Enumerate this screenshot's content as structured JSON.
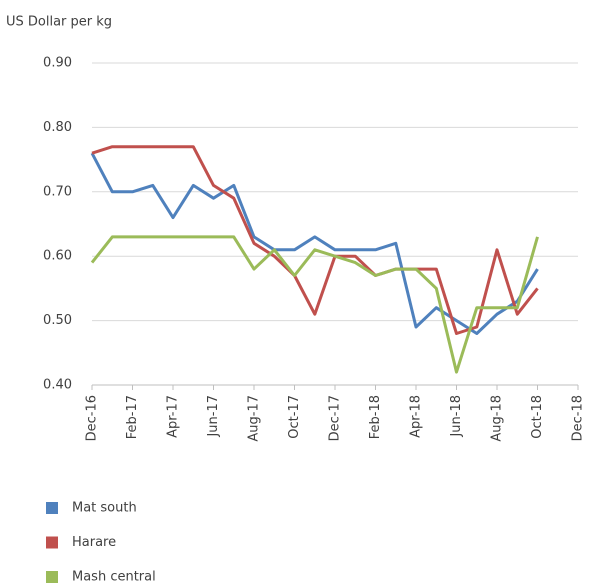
{
  "chart_data": {
    "type": "line",
    "y_label": "US Dollar per kg",
    "categories": [
      "Dec-16",
      null,
      "Feb-17",
      null,
      "Apr-17",
      null,
      "Jun-17",
      null,
      "Aug-17",
      null,
      "Oct-17",
      null,
      "Dec-17",
      null,
      "Feb-18",
      null,
      "Apr-18",
      null,
      "Jun-18",
      null,
      "Aug-18",
      null,
      "Oct-18",
      null,
      "Dec-18"
    ],
    "series": [
      {
        "name": "Mat south",
        "color": "#4f81bd",
        "values": [
          0.76,
          0.7,
          0.7,
          0.71,
          0.66,
          0.71,
          0.69,
          0.71,
          0.63,
          0.61,
          0.61,
          0.63,
          0.61,
          0.61,
          0.61,
          0.62,
          0.49,
          0.52,
          0.5,
          0.48,
          0.51,
          0.53,
          0.58,
          null,
          null
        ]
      },
      {
        "name": "Harare",
        "color": "#c0504d",
        "values": [
          0.76,
          0.77,
          0.77,
          0.77,
          0.77,
          0.77,
          0.71,
          0.69,
          0.62,
          0.6,
          0.57,
          0.51,
          0.6,
          0.6,
          0.57,
          0.58,
          0.58,
          0.58,
          0.48,
          0.49,
          0.61,
          0.51,
          0.55,
          null,
          null
        ]
      },
      {
        "name": "Mash central",
        "color": "#9bbb59",
        "values": [
          0.59,
          0.63,
          0.63,
          0.63,
          0.63,
          0.63,
          0.63,
          0.63,
          0.58,
          0.61,
          0.57,
          0.61,
          0.6,
          0.59,
          0.57,
          0.58,
          0.58,
          0.55,
          0.42,
          0.52,
          0.52,
          0.52,
          0.63,
          null,
          null
        ]
      }
    ],
    "ylim": [
      0.4,
      0.9
    ],
    "yticks": [
      {
        "value": 0.4,
        "label": "0.40"
      },
      {
        "value": 0.5,
        "label": "0.50"
      },
      {
        "value": 0.6,
        "label": "0.60"
      },
      {
        "value": 0.7,
        "label": "0.70"
      },
      {
        "value": 0.8,
        "label": "0.80"
      },
      {
        "value": 0.9,
        "label": "0.90"
      }
    ],
    "grid": true,
    "legend": "bottom"
  }
}
